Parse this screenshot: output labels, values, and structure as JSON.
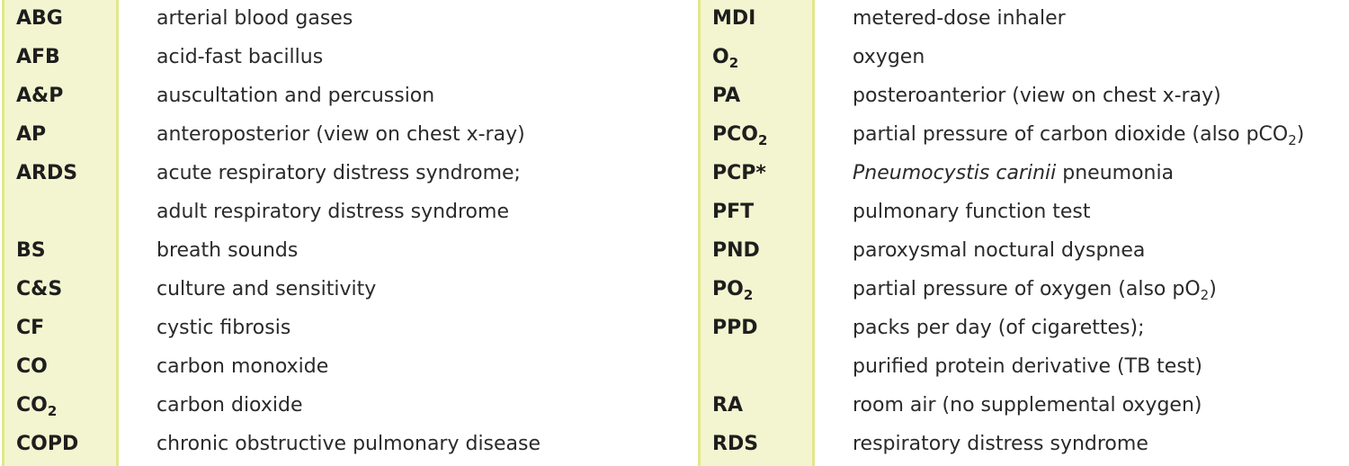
{
  "colors": {
    "band_fill": "#f2f5cf",
    "band_border": "#e1e78a",
    "text": "#222222"
  },
  "left_column": [
    {
      "abbr": "ABG",
      "def": "arterial blood gases"
    },
    {
      "abbr": "AFB",
      "def": "acid-fast bacillus"
    },
    {
      "abbr": "A&P",
      "def": "auscultation and percussion"
    },
    {
      "abbr": "AP",
      "def": "anteroposterior (view on chest x-ray)"
    },
    {
      "abbr": "ARDS",
      "def": "acute respiratory distress syndrome;"
    },
    {
      "abbr": "",
      "def": "adult respiratory distress syndrome"
    },
    {
      "abbr": "BS",
      "def": "breath sounds"
    },
    {
      "abbr": "C&S",
      "def": "culture and sensitivity"
    },
    {
      "abbr": "CF",
      "def": "cystic fibrosis"
    },
    {
      "abbr": "CO",
      "def": "carbon monoxide"
    },
    {
      "abbr": "CO",
      "abbr_sub": "2",
      "def": "carbon dioxide"
    },
    {
      "abbr": "COPD",
      "def": "chronic obstructive pulmonary disease"
    }
  ],
  "right_column": [
    {
      "abbr": "MDI",
      "def": "metered-dose inhaler"
    },
    {
      "abbr": "O",
      "abbr_sub": "2",
      "def": "oxygen"
    },
    {
      "abbr": "PA",
      "def": "posteroanterior (view on chest x-ray)"
    },
    {
      "abbr": "PCO",
      "abbr_sub": "2",
      "def": "partial pressure of carbon dioxide (also pCO",
      "def_sub": "2",
      "def_tail": ")"
    },
    {
      "abbr": "PCP*",
      "def_italic": "Pneumocystis carinii",
      "def": " pneumonia"
    },
    {
      "abbr": "PFT",
      "def": "pulmonary function test"
    },
    {
      "abbr": "PND",
      "def": "paroxysmal noctural dyspnea"
    },
    {
      "abbr": "PO",
      "abbr_sub": "2",
      "def": "partial pressure of oxygen (also pO",
      "def_sub": "2",
      "def_tail": ")"
    },
    {
      "abbr": "PPD",
      "def": "packs per day (of cigarettes);"
    },
    {
      "abbr": "",
      "def": "purified protein derivative (TB test)"
    },
    {
      "abbr": "RA",
      "def": "room air (no supplemental oxygen)"
    },
    {
      "abbr": "RDS",
      "def": "respiratory distress syndrome"
    }
  ]
}
